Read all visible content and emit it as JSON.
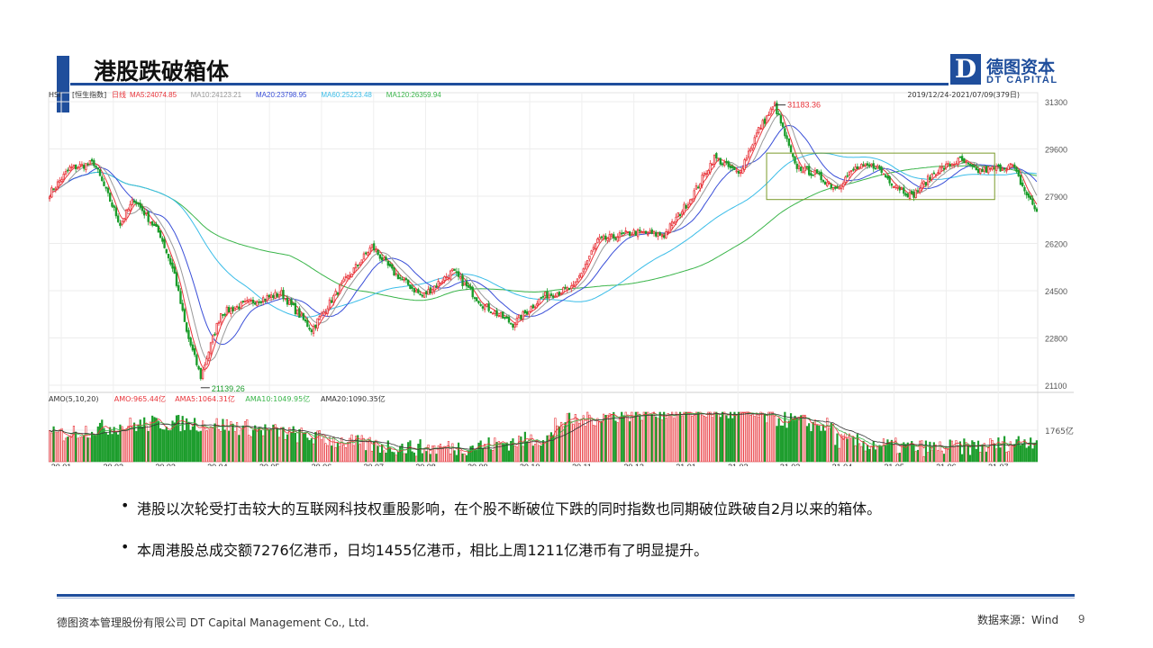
{
  "slide": {
    "title": "港股跌破箱体",
    "logo": {
      "mark": "D",
      "cn": "德图资本",
      "en": "DT CAPITAL"
    },
    "bullets": [
      "港股以次轮受打击较大的互联网科技权重股影响，在个股不断破位下跌的同时指数也同期破位跌破自2月以来的箱体。",
      "本周港股总成交额7276亿港币，日均1455亿港币，相比上周1211亿港币有了明显提升。"
    ],
    "footer": {
      "company": "德图资本管理股份有限公司  DT Capital  Management  Co., Ltd.",
      "source": "数据来源：Wind",
      "page": "9"
    },
    "colors": {
      "accent": "#1f4e9c",
      "up": "#e8343a",
      "down": "#1a9c2a"
    }
  },
  "chart_data": {
    "type": "candlestick",
    "header": {
      "ticker": "HSI",
      "name": "[恒生指数]",
      "period": "日线",
      "range": "2019/12/24-2021/07/09(379日)",
      "ma": [
        {
          "label": "MA5:24074.85",
          "color": "#e8343a"
        },
        {
          "label": "MA10:24123.21",
          "color": "#999999"
        },
        {
          "label": "MA20:23798.95",
          "color": "#3a4fd8"
        },
        {
          "label": "MA60:25223.48",
          "color": "#3bbde8"
        },
        {
          "label": "MA120:26359.94",
          "color": "#3ab54a"
        }
      ]
    },
    "price_ticks": [
      "31300",
      "29600",
      "27900",
      "26200",
      "24500",
      "22800",
      "21100"
    ],
    "ylim": [
      21100,
      31300
    ],
    "annotations": {
      "high": {
        "label": "31183.36",
        "value": 31183.36
      },
      "low": {
        "label": "21139.26",
        "value": 21139.26
      }
    },
    "box": {
      "top": 29450,
      "bottom": 27780,
      "from_month": "21.02",
      "to_month": "21.07"
    },
    "months": [
      "20.01",
      "20.02",
      "20.03",
      "20.04",
      "20.05",
      "20.06",
      "20.07",
      "20.08",
      "20.09",
      "20.10",
      "20.11",
      "20.12",
      "21.01",
      "21.02",
      "21.03",
      "21.04",
      "21.05",
      "21.06",
      "21.07"
    ],
    "anchors": [
      [
        0,
        28000
      ],
      [
        10,
        28900
      ],
      [
        22,
        29100
      ],
      [
        35,
        26900
      ],
      [
        42,
        27800
      ],
      [
        55,
        26500
      ],
      [
        62,
        25100
      ],
      [
        68,
        23000
      ],
      [
        75,
        21400
      ],
      [
        85,
        23700
      ],
      [
        100,
        24100
      ],
      [
        115,
        24400
      ],
      [
        130,
        23100
      ],
      [
        145,
        24700
      ],
      [
        160,
        26100
      ],
      [
        170,
        25200
      ],
      [
        185,
        24300
      ],
      [
        200,
        25200
      ],
      [
        215,
        24000
      ],
      [
        230,
        23300
      ],
      [
        245,
        24300
      ],
      [
        260,
        24600
      ],
      [
        272,
        26300
      ],
      [
        290,
        26600
      ],
      [
        305,
        26500
      ],
      [
        318,
        27800
      ],
      [
        330,
        29300
      ],
      [
        342,
        28700
      ],
      [
        352,
        30300
      ],
      [
        360,
        31183
      ],
      [
        370,
        29000
      ],
      [
        380,
        28700
      ],
      [
        390,
        28200
      ],
      [
        400,
        28900
      ],
      [
        410,
        29000
      ],
      [
        418,
        28400
      ],
      [
        428,
        27900
      ],
      [
        440,
        28800
      ],
      [
        452,
        29200
      ],
      [
        460,
        28800
      ],
      [
        470,
        28900
      ],
      [
        478,
        29000
      ],
      [
        484,
        28100
      ],
      [
        490,
        27350
      ]
    ],
    "volume_header": [
      {
        "label": "AMO(5,10,20)",
        "color": "#333333"
      },
      {
        "label": "AMO:965.44亿",
        "color": "#e8343a"
      },
      {
        "label": "AMA5:1064.31亿",
        "color": "#e8343a"
      },
      {
        "label": "AMA10:1049.95亿",
        "color": "#3ab54a"
      },
      {
        "label": "AMA20:1090.35亿",
        "color": "#333333"
      }
    ],
    "volume_tick": "1765亿"
  }
}
